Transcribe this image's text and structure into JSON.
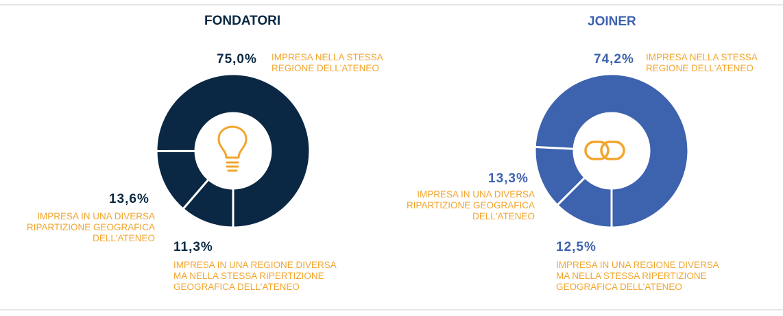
{
  "colors": {
    "label": "#f2a52d",
    "icon": "#f2a52d",
    "separator": "#ffffff",
    "rule": "#e3e6ea"
  },
  "chart_data": [
    {
      "type": "pie",
      "title": "FONDATORI",
      "color": "#0a2843",
      "center_icon": "lightbulb-icon",
      "slices": [
        {
          "value": 75.0,
          "value_label": "75,0%",
          "label": "IMPRESA NELLA STESSA\nREGIONE DELL'ATENEO"
        },
        {
          "value": 11.3,
          "value_label": "11,3%",
          "label": "IMPRESA IN UNA REGIONE DIVERSA\nMA NELLA STESSA RIPERTIZIONE\nGEOGRAFICA DELL'ATENEO"
        },
        {
          "value": 13.6,
          "value_label": "13,6%",
          "label": "IMPRESA IN UNA DIVERSA\nRIPARTIZIONE GEOGRAFICA\nDELL'ATENEO"
        }
      ]
    },
    {
      "type": "pie",
      "title": "JOINER",
      "color": "#3d62ae",
      "center_icon": "chain-link-icon",
      "slices": [
        {
          "value": 74.2,
          "value_label": "74,2%",
          "label": "IMPRESA NELLA STESSA\nREGIONE DELL'ATENEO"
        },
        {
          "value": 12.5,
          "value_label": "12,5%",
          "label": "IMPRESA IN UNA REGIONE DIVERSA\nMA NELLA STESSA RIPERTIZIONE\nGEOGRAFICA DELL'ATENEO"
        },
        {
          "value": 13.3,
          "value_label": "13,3%",
          "label": "IMPRESA IN UNA DIVERSA\nRIPARTIZIONE GEOGRAFICA\nDELL'ATENEO"
        }
      ]
    }
  ]
}
